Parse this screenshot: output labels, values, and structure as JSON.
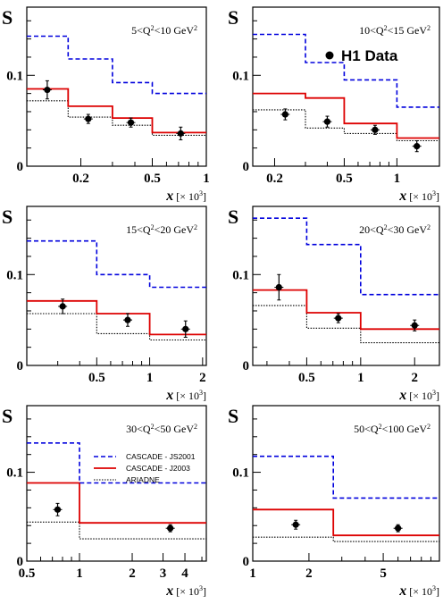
{
  "legend": {
    "entries": [
      {
        "key": "cascade_js2001",
        "label": "CASCADE - JS2001"
      },
      {
        "key": "cascade_js2003",
        "label": "CASCADE - J2003"
      },
      {
        "key": "ariadne",
        "label": "ARIADNE"
      }
    ],
    "data_label": "H1 Data"
  },
  "style": {
    "cascade_js2001": "#0000dd",
    "cascade_js2003": "#dd0000",
    "ariadne": "#000000",
    "data": "#000000"
  },
  "chart_data": [
    {
      "type": "line",
      "title": "5<Q²<10 GeV²",
      "ylabel": "S",
      "xlabel": "x [× 10³]",
      "xscale": "log",
      "xlim": [
        0.1,
        1
      ],
      "ylim": [
        0,
        0.175
      ],
      "xticks": [
        "0.2",
        "0.5",
        "1"
      ],
      "xtick_values": [
        0.2,
        0.5,
        1
      ],
      "yticks": [
        "0",
        "0.1"
      ],
      "ytick_values": [
        0,
        0.1
      ],
      "bin_edges": [
        0.1,
        0.17,
        0.3,
        0.5,
        1.0
      ],
      "series": [
        {
          "key": "cascade_js2001",
          "values": [
            0.143,
            0.118,
            0.092,
            0.08
          ]
        },
        {
          "key": "cascade_js2003",
          "values": [
            0.085,
            0.066,
            0.053,
            0.037
          ]
        },
        {
          "key": "ariadne",
          "values": [
            0.072,
            0.054,
            0.045,
            0.034
          ]
        }
      ],
      "data": {
        "x": [
          0.13,
          0.22,
          0.38,
          0.72
        ],
        "y": [
          0.084,
          0.052,
          0.048,
          0.036
        ],
        "err": [
          0.01,
          0.005,
          0.005,
          0.007
        ]
      }
    },
    {
      "type": "line",
      "title": "10<Q²<15 GeV²",
      "ylabel": "S",
      "xlabel": "x [× 10³]",
      "xscale": "log",
      "xlim": [
        0.15,
        1.75
      ],
      "ylim": [
        0,
        0.175
      ],
      "xticks": [
        "0.2",
        "0.5",
        "1"
      ],
      "xtick_values": [
        0.2,
        0.5,
        1
      ],
      "yticks": [
        "0",
        "0.1"
      ],
      "ytick_values": [
        0,
        0.1
      ],
      "bin_edges": [
        0.15,
        0.3,
        0.5,
        1.0,
        1.75
      ],
      "series": [
        {
          "key": "cascade_js2001",
          "values": [
            0.145,
            0.114,
            0.095,
            0.065
          ]
        },
        {
          "key": "cascade_js2003",
          "values": [
            0.08,
            0.075,
            0.047,
            0.031
          ]
        },
        {
          "key": "ariadne",
          "values": [
            0.062,
            0.042,
            0.036,
            0.028
          ]
        }
      ],
      "data": {
        "x": [
          0.23,
          0.4,
          0.75,
          1.3
        ],
        "y": [
          0.057,
          0.049,
          0.04,
          0.022
        ],
        "err": [
          0.006,
          0.006,
          0.005,
          0.006
        ]
      },
      "show_data_label": true
    },
    {
      "type": "line",
      "title": "15<Q²<20 GeV²",
      "ylabel": "S",
      "xlabel": "x [× 10³]",
      "xscale": "log",
      "xlim": [
        0.2,
        2.1
      ],
      "ylim": [
        0,
        0.175
      ],
      "xticks": [
        "0.5",
        "1",
        "2"
      ],
      "xtick_values": [
        0.5,
        1,
        2
      ],
      "yticks": [
        "0",
        "0.1"
      ],
      "ytick_values": [
        0,
        0.1
      ],
      "bin_edges": [
        0.2,
        0.5,
        1.0,
        2.1
      ],
      "series": [
        {
          "key": "cascade_js2001",
          "values": [
            0.137,
            0.1,
            0.086
          ]
        },
        {
          "key": "cascade_js2003",
          "values": [
            0.071,
            0.057,
            0.034
          ]
        },
        {
          "key": "ariadne",
          "values": [
            0.057,
            0.035,
            0.028
          ]
        }
      ],
      "data": {
        "x": [
          0.32,
          0.75,
          1.6
        ],
        "y": [
          0.065,
          0.05,
          0.04
        ],
        "err": [
          0.008,
          0.007,
          0.009
        ]
      }
    },
    {
      "type": "line",
      "title": "20<Q²<30 GeV²",
      "ylabel": "S",
      "xlabel": "x [× 10³]",
      "xscale": "log",
      "xlim": [
        0.25,
        2.75
      ],
      "ylim": [
        0,
        0.175
      ],
      "xticks": [
        "0.5",
        "1",
        "2"
      ],
      "xtick_values": [
        0.5,
        1,
        2
      ],
      "yticks": [
        "0",
        "0.1"
      ],
      "ytick_values": [
        0,
        0.1
      ],
      "bin_edges": [
        0.25,
        0.5,
        1.0,
        2.75
      ],
      "series": [
        {
          "key": "cascade_js2001",
          "values": [
            0.162,
            0.133,
            0.078
          ]
        },
        {
          "key": "cascade_js2003",
          "values": [
            0.083,
            0.058,
            0.04
          ]
        },
        {
          "key": "ariadne",
          "values": [
            0.066,
            0.041,
            0.025
          ]
        }
      ],
      "data": {
        "x": [
          0.35,
          0.75,
          2.0
        ],
        "y": [
          0.086,
          0.052,
          0.044
        ],
        "err": [
          0.014,
          0.005,
          0.006
        ]
      }
    },
    {
      "type": "line",
      "title": "30<Q²<50 GeV²",
      "ylabel": "S",
      "xlabel": "x [× 10³]",
      "xscale": "log",
      "xlim": [
        0.5,
        5.3
      ],
      "ylim": [
        0,
        0.175
      ],
      "xticks": [
        "0.5",
        "1",
        "2",
        "3",
        "4"
      ],
      "xtick_values": [
        0.5,
        1,
        2,
        3,
        4
      ],
      "yticks": [
        "0",
        "0.1"
      ],
      "ytick_values": [
        0,
        0.1
      ],
      "bin_edges": [
        0.5,
        1.0,
        5.3
      ],
      "series": [
        {
          "key": "cascade_js2001",
          "values": [
            0.133,
            0.088
          ]
        },
        {
          "key": "cascade_js2003",
          "values": [
            0.088,
            0.043
          ]
        },
        {
          "key": "ariadne",
          "values": [
            0.044,
            0.025
          ]
        }
      ],
      "data": {
        "x": [
          0.75,
          3.3
        ],
        "y": [
          0.058,
          0.037
        ],
        "err": [
          0.007,
          0.004
        ]
      },
      "show_legend": true
    },
    {
      "type": "line",
      "title": "50<Q²<100 GeV²",
      "ylabel": "S",
      "xlabel": "x [× 10³]",
      "xscale": "log",
      "xlim": [
        1,
        10
      ],
      "ylim": [
        0,
        0.175
      ],
      "xticks": [
        "1",
        "2",
        "5"
      ],
      "xtick_values": [
        1,
        2,
        5
      ],
      "yticks": [
        "0",
        "0.1"
      ],
      "ytick_values": [
        0,
        0.1
      ],
      "bin_edges": [
        1.0,
        2.7,
        10
      ],
      "series": [
        {
          "key": "cascade_js2001",
          "values": [
            0.118,
            0.071
          ]
        },
        {
          "key": "cascade_js2003",
          "values": [
            0.058,
            0.029
          ]
        },
        {
          "key": "ariadne",
          "values": [
            0.027,
            0.022
          ]
        }
      ],
      "data": {
        "x": [
          1.7,
          6.0
        ],
        "y": [
          0.041,
          0.037
        ],
        "err": [
          0.005,
          0.004
        ]
      }
    }
  ]
}
